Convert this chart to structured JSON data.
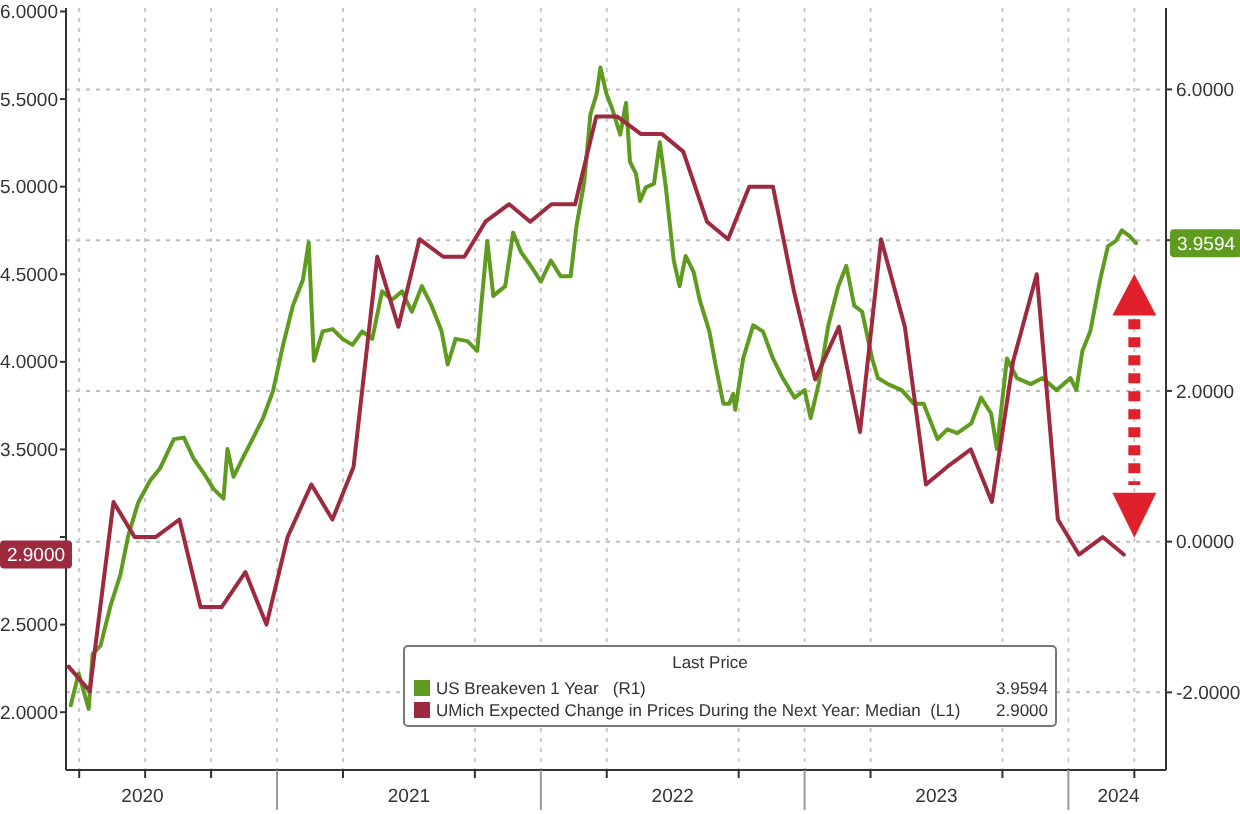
{
  "chart_data": {
    "type": "line",
    "legend_title": "Last Price",
    "legend": "bottom",
    "grid": true,
    "xlim": [
      2020.2,
      2024.37
    ],
    "xticks": [
      {
        "value": 2020.25,
        "label": null
      },
      {
        "value": 2020.5,
        "label": null
      },
      {
        "value": 2020.49,
        "label": "2020"
      },
      {
        "value": 2020.75,
        "label": null
      },
      {
        "value": 2021,
        "label": null
      },
      {
        "value": 2021.25,
        "label": null
      },
      {
        "value": 2021.5,
        "label": "2021"
      },
      {
        "value": 2021.75,
        "label": null
      },
      {
        "value": 2022,
        "label": null
      },
      {
        "value": 2022.25,
        "label": null
      },
      {
        "value": 2022.5,
        "label": "2022"
      },
      {
        "value": 2022.75,
        "label": null
      },
      {
        "value": 2023,
        "label": null
      },
      {
        "value": 2023.25,
        "label": null
      },
      {
        "value": 2023.5,
        "label": "2023"
      },
      {
        "value": 2023.75,
        "label": null
      },
      {
        "value": 2024,
        "label": null
      },
      {
        "value": 2024.19,
        "label": "2024"
      },
      {
        "value": 2024.25,
        "label": null
      }
    ],
    "ylim": [
      1.67,
      6.02
    ],
    "yticks": [
      {
        "value": 2,
        "label": "2.0000"
      },
      {
        "value": 2.5,
        "label": "2.5000"
      },
      {
        "value": 3,
        "label": null
      },
      {
        "value": 3.5,
        "label": "3.5000"
      },
      {
        "value": 4,
        "label": "4.0000"
      },
      {
        "value": 4.5,
        "label": "4.5000"
      },
      {
        "value": 5,
        "label": "5.0000"
      },
      {
        "value": 5.5,
        "label": "5.5000"
      },
      {
        "value": 6,
        "label": "6.0000"
      }
    ],
    "y2lim": [
      -3.03,
      7.08
    ],
    "y2ticks": [
      {
        "value": -2,
        "label": "-2.0000"
      },
      {
        "value": 0,
        "label": "0.0000"
      },
      {
        "value": 2,
        "label": "2.0000"
      },
      {
        "value": 4,
        "label": null
      },
      {
        "value": 6,
        "label": "6.0000"
      }
    ],
    "annotations": [
      "3.9594",
      "2.9000"
    ],
    "series": [
      {
        "name": "US Breakeven 1 Year   (R1)",
        "color": "#5e9b1e",
        "axis": "y2",
        "x": [
          2020.218,
          2020.248,
          2020.286,
          2020.301,
          2020.331,
          2020.368,
          2020.406,
          2020.436,
          2020.474,
          2020.519,
          2020.556,
          2020.609,
          2020.647,
          2020.684,
          2020.722,
          2020.759,
          2020.797,
          2020.812,
          2020.835,
          2020.872,
          2020.91,
          2020.947,
          2020.985,
          2021.023,
          2021.06,
          2021.098,
          2021.12,
          2021.14,
          2021.173,
          2021.211,
          2021.248,
          2021.286,
          2021.323,
          2021.361,
          2021.398,
          2021.436,
          2021.474,
          2021.511,
          2021.549,
          2021.586,
          2021.624,
          2021.647,
          2021.677,
          2021.722,
          2021.759,
          2021.774,
          2021.797,
          2021.82,
          2021.865,
          2021.895,
          2021.925,
          2021.962,
          2022.0,
          2022.038,
          2022.075,
          2022.113,
          2022.135,
          2022.165,
          2022.188,
          2022.211,
          2022.226,
          2022.248,
          2022.271,
          2022.301,
          2022.323,
          2022.338,
          2022.361,
          2022.376,
          2022.398,
          2022.429,
          2022.451,
          2022.474,
          2022.504,
          2022.526,
          2022.549,
          2022.579,
          2022.602,
          2022.639,
          2022.662,
          2022.692,
          2022.714,
          2022.729,
          2022.737,
          2022.767,
          2022.805,
          2022.842,
          2022.88,
          2022.917,
          2022.962,
          2023.0,
          2023.023,
          2023.053,
          2023.09,
          2023.128,
          2023.158,
          2023.188,
          2023.218,
          2023.256,
          2023.278,
          2023.316,
          2023.368,
          2023.414,
          2023.451,
          2023.504,
          2023.541,
          2023.579,
          2023.632,
          2023.669,
          2023.707,
          2023.729,
          2023.767,
          2023.805,
          2023.857,
          2023.902,
          2023.955,
          2024.008,
          2024.03,
          2024.053,
          2024.083,
          2024.12,
          2024.15,
          2024.18,
          2024.203,
          2024.233,
          2024.256
        ],
        "values": [
          -2.17,
          -1.75,
          -2.22,
          -1.49,
          -1.38,
          -0.86,
          -0.44,
          0.08,
          0.52,
          0.81,
          0.97,
          1.36,
          1.38,
          1.1,
          0.91,
          0.7,
          0.57,
          1.23,
          0.86,
          1.12,
          1.38,
          1.64,
          2.0,
          2.61,
          3.13,
          3.47,
          3.97,
          2.4,
          2.79,
          2.82,
          2.69,
          2.61,
          2.79,
          2.69,
          3.32,
          3.21,
          3.32,
          3.05,
          3.39,
          3.13,
          2.79,
          2.35,
          2.69,
          2.66,
          2.53,
          3.13,
          3.99,
          3.26,
          3.39,
          4.1,
          3.84,
          3.66,
          3.45,
          3.73,
          3.52,
          3.52,
          4.18,
          4.78,
          5.67,
          5.93,
          6.29,
          5.95,
          5.74,
          5.4,
          5.82,
          5.04,
          4.88,
          4.52,
          4.7,
          4.75,
          5.3,
          4.7,
          3.73,
          3.39,
          3.79,
          3.58,
          3.21,
          2.79,
          2.35,
          1.83,
          1.83,
          1.96,
          1.75,
          2.43,
          2.87,
          2.79,
          2.43,
          2.17,
          1.91,
          2.01,
          1.64,
          2.09,
          2.87,
          3.39,
          3.66,
          3.13,
          3.05,
          2.43,
          2.17,
          2.09,
          2.01,
          1.83,
          1.83,
          1.36,
          1.49,
          1.44,
          1.57,
          1.91,
          1.7,
          1.23,
          2.43,
          2.17,
          2.09,
          2.17,
          2.01,
          2.17,
          2.01,
          2.53,
          2.79,
          3.47,
          3.92,
          3.99,
          4.13,
          4.05,
          3.96
        ]
      },
      {
        "name": "UMich Expected Change in Prices During the Next Year: Median  (L1)",
        "color": "#9e2a3f",
        "axis": "y",
        "x": [
          2020.21,
          2020.29,
          2020.38,
          2020.46,
          2020.54,
          2020.63,
          2020.71,
          2020.79,
          2020.88,
          2020.96,
          2021.04,
          2021.13,
          2021.21,
          2021.29,
          2021.38,
          2021.46,
          2021.54,
          2021.63,
          2021.71,
          2021.79,
          2021.88,
          2021.96,
          2022.04,
          2022.13,
          2022.21,
          2022.29,
          2022.38,
          2022.46,
          2022.54,
          2022.63,
          2022.71,
          2022.79,
          2022.88,
          2022.96,
          2023.04,
          2023.13,
          2023.21,
          2023.29,
          2023.38,
          2023.46,
          2023.54,
          2023.63,
          2023.71,
          2023.79,
          2023.88,
          2023.96,
          2024.04,
          2024.13,
          2024.21
        ],
        "values": [
          2.26,
          2.12,
          3.2,
          3.0,
          3.0,
          3.1,
          2.6,
          2.6,
          2.8,
          2.5,
          3.0,
          3.3,
          3.1,
          3.4,
          4.6,
          4.2,
          4.7,
          4.6,
          4.6,
          4.8,
          4.9,
          4.8,
          4.9,
          4.9,
          5.4,
          5.4,
          5.3,
          5.3,
          5.2,
          4.8,
          4.7,
          5.0,
          5.0,
          4.4,
          3.9,
          4.2,
          3.6,
          4.7,
          4.2,
          3.3,
          3.4,
          3.5,
          3.2,
          4.0,
          4.5,
          3.1,
          2.9,
          3.0,
          2.9
        ]
      }
    ]
  }
}
